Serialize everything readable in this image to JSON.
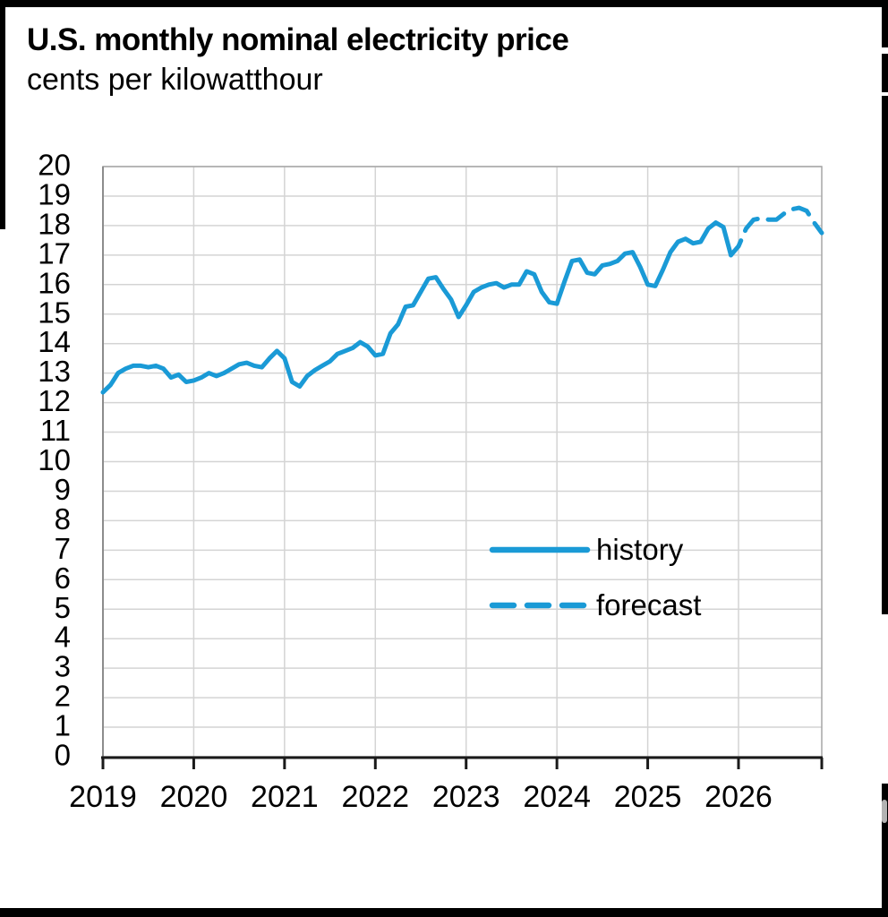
{
  "chart_data": {
    "type": "line",
    "title": "U.S. monthly nominal electricity price",
    "subtitle": "cents per kilowatthour",
    "xlabel": "",
    "ylabel": "cents per kilowatthour",
    "ylim": [
      0,
      20
    ],
    "y_ticks": [
      0,
      1,
      2,
      3,
      4,
      5,
      6,
      7,
      8,
      9,
      10,
      11,
      12,
      13,
      14,
      15,
      16,
      17,
      18,
      19,
      20
    ],
    "x_ticks": [
      "2019",
      "2020",
      "2021",
      "2022",
      "2023",
      "2024",
      "2025",
      "2026"
    ],
    "grid": true,
    "line_color": "#1a9ad6",
    "legend_position": "inside-right",
    "legend": [
      {
        "label": "history",
        "style": "solid"
      },
      {
        "label": "forecast",
        "style": "dashed"
      }
    ],
    "series": [
      {
        "name": "history",
        "style": "solid",
        "start": "2019-01",
        "start_month_index": 0,
        "values": [
          12.35,
          12.6,
          13.0,
          13.15,
          13.25,
          13.25,
          13.2,
          13.25,
          13.15,
          12.85,
          12.95,
          12.7,
          12.75,
          12.85,
          13.0,
          12.9,
          13.0,
          13.15,
          13.3,
          13.35,
          13.25,
          13.2,
          13.5,
          13.75,
          13.5,
          12.7,
          12.55,
          12.9,
          13.1,
          13.25,
          13.4,
          13.65,
          13.75,
          13.85,
          14.05,
          13.9,
          13.6,
          13.65,
          14.35,
          14.65,
          15.25,
          15.3,
          15.75,
          16.2,
          16.25,
          15.85,
          15.5,
          14.9,
          15.3,
          15.75,
          15.9,
          16.0,
          16.05,
          15.9,
          16.0,
          16.0,
          16.45,
          16.35,
          15.75,
          15.4,
          15.35,
          16.1,
          16.8,
          16.85,
          16.4,
          16.35,
          16.65,
          16.7,
          16.8,
          17.05,
          17.1,
          16.6,
          16.0,
          15.95,
          16.5,
          17.1,
          17.45,
          17.55,
          17.4,
          17.45,
          17.9,
          18.1,
          17.95,
          17.0
        ]
      },
      {
        "name": "forecast",
        "style": "dashed",
        "start": "2025-12",
        "start_month_index": 83,
        "values": [
          17.0,
          17.3,
          17.9,
          18.2,
          18.25,
          18.2,
          18.2,
          18.4,
          18.55,
          18.6,
          18.5,
          18.1,
          17.75
        ]
      }
    ]
  }
}
